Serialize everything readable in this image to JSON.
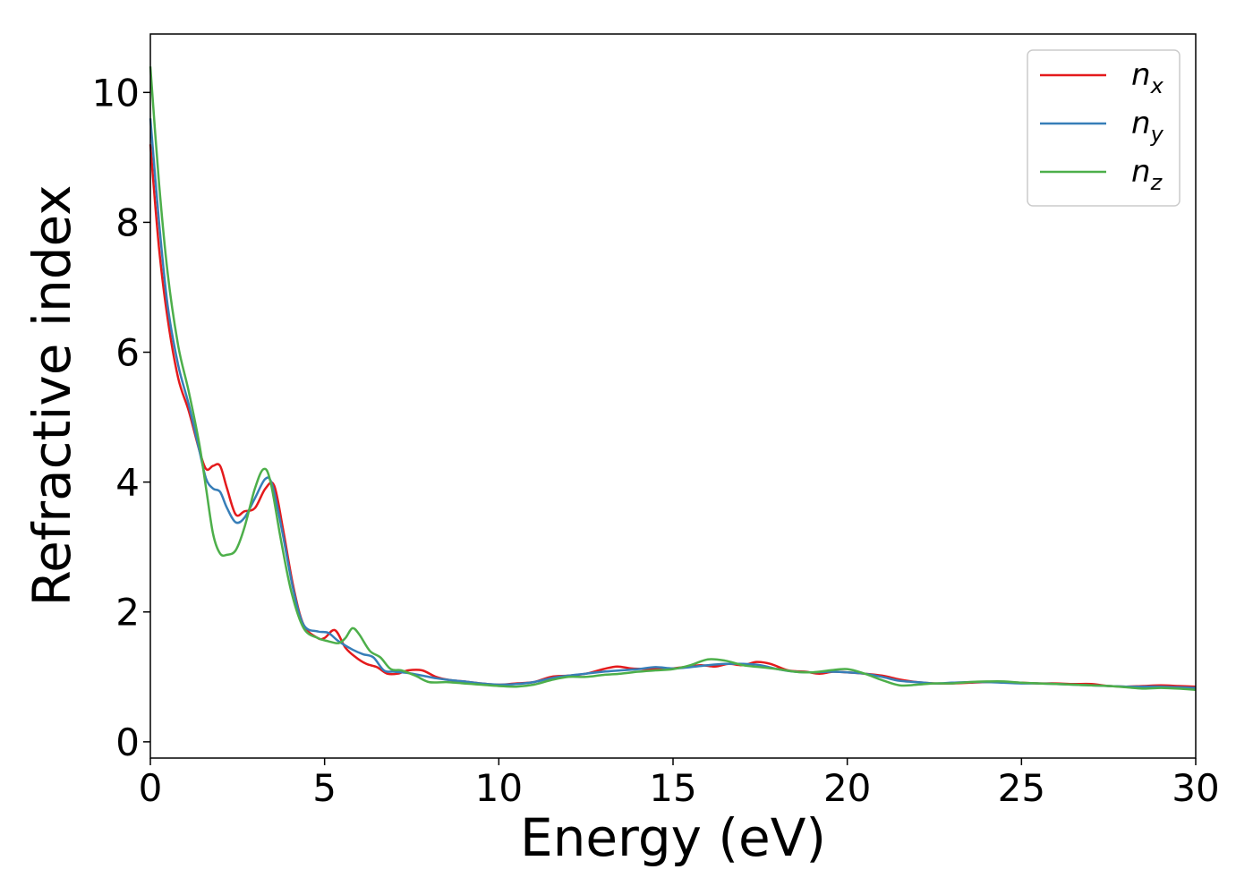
{
  "chart_data": {
    "type": "line",
    "xlabel": "Energy (eV)",
    "ylabel": "Refractive index",
    "xlim": [
      0,
      30
    ],
    "ylim": [
      -0.25,
      10.9
    ],
    "x_ticks": [
      "0",
      "5",
      "10",
      "15",
      "20",
      "25",
      "30"
    ],
    "y_ticks": [
      "0",
      "2",
      "4",
      "6",
      "8",
      "10"
    ],
    "grid": false,
    "legend_position": "top-right",
    "series": [
      {
        "name": "n",
        "subscript": "x",
        "color": "#e41a1c",
        "points": [
          [
            0,
            9.2
          ],
          [
            0.25,
            7.6
          ],
          [
            0.5,
            6.5
          ],
          [
            0.8,
            5.6
          ],
          [
            1.1,
            5.1
          ],
          [
            1.4,
            4.5
          ],
          [
            1.6,
            4.2
          ],
          [
            1.8,
            4.25
          ],
          [
            2.0,
            4.25
          ],
          [
            2.2,
            3.9
          ],
          [
            2.45,
            3.5
          ],
          [
            2.7,
            3.55
          ],
          [
            3.0,
            3.6
          ],
          [
            3.3,
            3.9
          ],
          [
            3.55,
            3.95
          ],
          [
            3.8,
            3.3
          ],
          [
            4.1,
            2.4
          ],
          [
            4.4,
            1.8
          ],
          [
            4.8,
            1.6
          ],
          [
            5.0,
            1.6
          ],
          [
            5.3,
            1.72
          ],
          [
            5.6,
            1.45
          ],
          [
            5.9,
            1.3
          ],
          [
            6.2,
            1.2
          ],
          [
            6.5,
            1.15
          ],
          [
            6.8,
            1.05
          ],
          [
            7.1,
            1.05
          ],
          [
            7.4,
            1.1
          ],
          [
            7.8,
            1.1
          ],
          [
            8.2,
            1.0
          ],
          [
            8.6,
            0.95
          ],
          [
            9.0,
            0.93
          ],
          [
            9.5,
            0.9
          ],
          [
            10.0,
            0.88
          ],
          [
            10.5,
            0.9
          ],
          [
            11.0,
            0.92
          ],
          [
            11.5,
            1.0
          ],
          [
            12.0,
            1.02
          ],
          [
            12.5,
            1.05
          ],
          [
            13.0,
            1.12
          ],
          [
            13.4,
            1.16
          ],
          [
            13.8,
            1.13
          ],
          [
            14.3,
            1.12
          ],
          [
            14.8,
            1.12
          ],
          [
            15.3,
            1.15
          ],
          [
            15.8,
            1.18
          ],
          [
            16.2,
            1.16
          ],
          [
            16.6,
            1.2
          ],
          [
            17.0,
            1.18
          ],
          [
            17.4,
            1.23
          ],
          [
            17.8,
            1.2
          ],
          [
            18.3,
            1.1
          ],
          [
            18.8,
            1.08
          ],
          [
            19.2,
            1.05
          ],
          [
            19.6,
            1.08
          ],
          [
            20.0,
            1.07
          ],
          [
            20.5,
            1.05
          ],
          [
            21.0,
            1.02
          ],
          [
            21.5,
            0.96
          ],
          [
            22.0,
            0.92
          ],
          [
            22.5,
            0.9
          ],
          [
            23.0,
            0.9
          ],
          [
            23.5,
            0.91
          ],
          [
            24.0,
            0.92
          ],
          [
            24.5,
            0.92
          ],
          [
            25.0,
            0.91
          ],
          [
            25.5,
            0.9
          ],
          [
            26.0,
            0.9
          ],
          [
            26.5,
            0.89
          ],
          [
            27.0,
            0.89
          ],
          [
            27.5,
            0.86
          ],
          [
            28.0,
            0.85
          ],
          [
            28.5,
            0.86
          ],
          [
            29.0,
            0.87
          ],
          [
            29.5,
            0.86
          ],
          [
            30.0,
            0.85
          ]
        ]
      },
      {
        "name": "n",
        "subscript": "y",
        "color": "#377eb8",
        "points": [
          [
            0,
            9.6
          ],
          [
            0.25,
            8.0
          ],
          [
            0.5,
            6.7
          ],
          [
            0.8,
            5.8
          ],
          [
            1.1,
            5.2
          ],
          [
            1.4,
            4.5
          ],
          [
            1.6,
            4.05
          ],
          [
            1.8,
            3.9
          ],
          [
            2.0,
            3.85
          ],
          [
            2.2,
            3.6
          ],
          [
            2.45,
            3.38
          ],
          [
            2.7,
            3.45
          ],
          [
            3.0,
            3.75
          ],
          [
            3.3,
            4.05
          ],
          [
            3.5,
            3.95
          ],
          [
            3.8,
            3.2
          ],
          [
            4.1,
            2.35
          ],
          [
            4.4,
            1.8
          ],
          [
            4.8,
            1.7
          ],
          [
            5.1,
            1.68
          ],
          [
            5.4,
            1.55
          ],
          [
            5.8,
            1.42
          ],
          [
            6.1,
            1.35
          ],
          [
            6.4,
            1.3
          ],
          [
            6.7,
            1.1
          ],
          [
            7.0,
            1.08
          ],
          [
            7.4,
            1.06
          ],
          [
            7.8,
            1.02
          ],
          [
            8.2,
            0.98
          ],
          [
            8.6,
            0.95
          ],
          [
            9.0,
            0.93
          ],
          [
            9.5,
            0.9
          ],
          [
            10.0,
            0.88
          ],
          [
            10.5,
            0.89
          ],
          [
            11.0,
            0.92
          ],
          [
            11.5,
            0.98
          ],
          [
            12.0,
            1.02
          ],
          [
            12.5,
            1.05
          ],
          [
            13.0,
            1.08
          ],
          [
            13.5,
            1.1
          ],
          [
            14.0,
            1.12
          ],
          [
            14.5,
            1.15
          ],
          [
            15.0,
            1.13
          ],
          [
            15.5,
            1.15
          ],
          [
            16.0,
            1.18
          ],
          [
            16.5,
            1.2
          ],
          [
            17.0,
            1.2
          ],
          [
            17.5,
            1.18
          ],
          [
            18.0,
            1.12
          ],
          [
            18.5,
            1.08
          ],
          [
            19.0,
            1.07
          ],
          [
            19.5,
            1.08
          ],
          [
            20.0,
            1.07
          ],
          [
            20.5,
            1.05
          ],
          [
            21.0,
            1.0
          ],
          [
            21.5,
            0.94
          ],
          [
            22.0,
            0.92
          ],
          [
            22.5,
            0.9
          ],
          [
            23.0,
            0.91
          ],
          [
            23.5,
            0.92
          ],
          [
            24.0,
            0.92
          ],
          [
            24.5,
            0.91
          ],
          [
            25.0,
            0.9
          ],
          [
            25.5,
            0.9
          ],
          [
            26.0,
            0.89
          ],
          [
            26.5,
            0.88
          ],
          [
            27.0,
            0.87
          ],
          [
            27.5,
            0.86
          ],
          [
            28.0,
            0.85
          ],
          [
            28.5,
            0.85
          ],
          [
            29.0,
            0.85
          ],
          [
            29.5,
            0.84
          ],
          [
            30.0,
            0.83
          ]
        ]
      },
      {
        "name": "n",
        "subscript": "z",
        "color": "#4daf4a",
        "points": [
          [
            0,
            10.4
          ],
          [
            0.25,
            8.6
          ],
          [
            0.5,
            7.2
          ],
          [
            0.8,
            6.1
          ],
          [
            1.1,
            5.4
          ],
          [
            1.4,
            4.6
          ],
          [
            1.6,
            3.9
          ],
          [
            1.8,
            3.2
          ],
          [
            2.0,
            2.9
          ],
          [
            2.2,
            2.88
          ],
          [
            2.45,
            2.95
          ],
          [
            2.7,
            3.3
          ],
          [
            3.0,
            3.9
          ],
          [
            3.25,
            4.2
          ],
          [
            3.45,
            4.0
          ],
          [
            3.75,
            3.1
          ],
          [
            4.05,
            2.3
          ],
          [
            4.4,
            1.75
          ],
          [
            4.8,
            1.6
          ],
          [
            5.1,
            1.55
          ],
          [
            5.4,
            1.52
          ],
          [
            5.6,
            1.6
          ],
          [
            5.8,
            1.75
          ],
          [
            6.0,
            1.65
          ],
          [
            6.3,
            1.4
          ],
          [
            6.6,
            1.3
          ],
          [
            6.9,
            1.12
          ],
          [
            7.2,
            1.1
          ],
          [
            7.6,
            1.02
          ],
          [
            8.0,
            0.92
          ],
          [
            8.5,
            0.92
          ],
          [
            9.0,
            0.9
          ],
          [
            9.5,
            0.88
          ],
          [
            10.0,
            0.86
          ],
          [
            10.5,
            0.85
          ],
          [
            11.0,
            0.88
          ],
          [
            11.5,
            0.95
          ],
          [
            12.0,
            1.0
          ],
          [
            12.5,
            1.0
          ],
          [
            13.0,
            1.03
          ],
          [
            13.5,
            1.05
          ],
          [
            14.0,
            1.08
          ],
          [
            14.5,
            1.1
          ],
          [
            15.0,
            1.12
          ],
          [
            15.5,
            1.18
          ],
          [
            16.0,
            1.27
          ],
          [
            16.5,
            1.25
          ],
          [
            17.0,
            1.18
          ],
          [
            17.5,
            1.15
          ],
          [
            18.0,
            1.12
          ],
          [
            18.5,
            1.08
          ],
          [
            19.0,
            1.07
          ],
          [
            19.5,
            1.1
          ],
          [
            20.0,
            1.12
          ],
          [
            20.5,
            1.05
          ],
          [
            21.0,
            0.95
          ],
          [
            21.5,
            0.87
          ],
          [
            22.0,
            0.88
          ],
          [
            22.5,
            0.9
          ],
          [
            23.0,
            0.9
          ],
          [
            23.5,
            0.92
          ],
          [
            24.0,
            0.93
          ],
          [
            24.5,
            0.93
          ],
          [
            25.0,
            0.91
          ],
          [
            25.5,
            0.9
          ],
          [
            26.0,
            0.89
          ],
          [
            26.5,
            0.88
          ],
          [
            27.0,
            0.87
          ],
          [
            27.5,
            0.86
          ],
          [
            28.0,
            0.84
          ],
          [
            28.5,
            0.82
          ],
          [
            29.0,
            0.83
          ],
          [
            29.5,
            0.82
          ],
          [
            30.0,
            0.8
          ]
        ]
      }
    ]
  }
}
